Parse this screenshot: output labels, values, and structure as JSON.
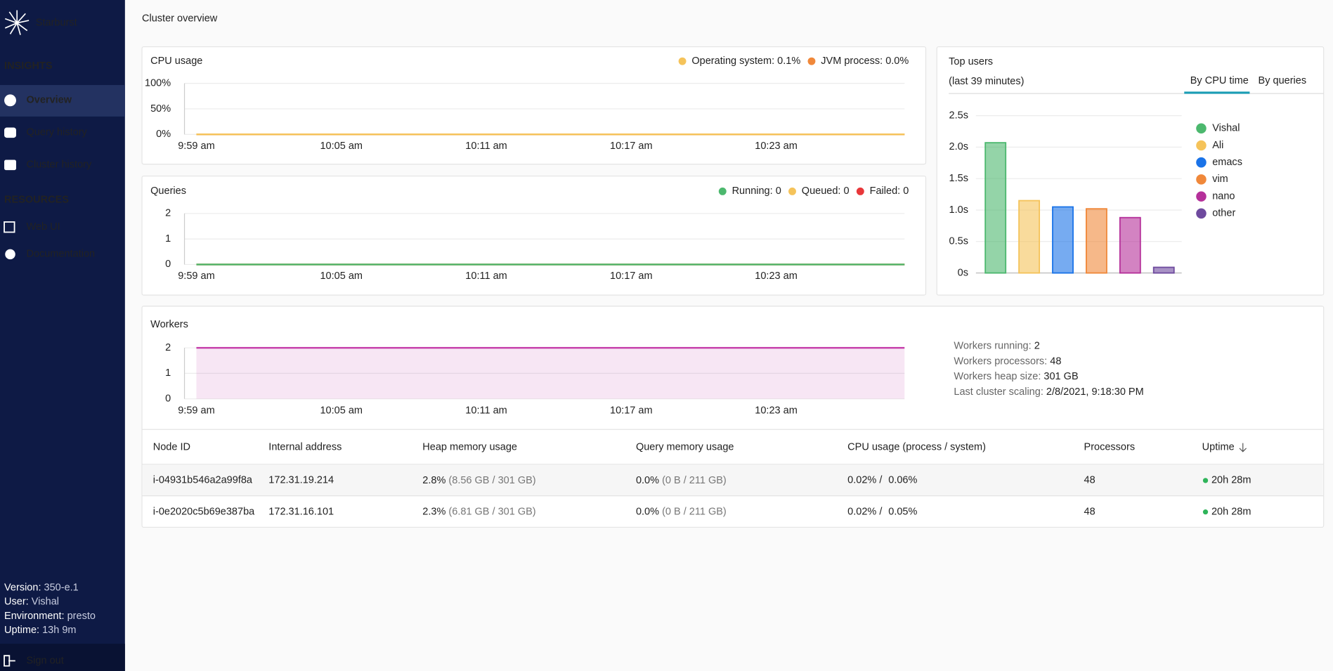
{
  "sidebar": {
    "brand": "Starburst",
    "section": "INSIGHTS",
    "nav": [
      "Overview",
      "Query history",
      "Cluster history"
    ],
    "resources_title": "RESOURCES",
    "resources": [
      "Web UI",
      "Documentation"
    ],
    "info": [
      {
        "label": "Version:",
        "value": "350-e.1"
      },
      {
        "label": "User:",
        "value": "Vishal"
      },
      {
        "label": "Environment:",
        "value": "presto"
      },
      {
        "label": "Uptime:",
        "value": "13h 9m"
      }
    ],
    "sign_out": "Sign out"
  },
  "page_title": "Cluster overview",
  "cpu_chart": {
    "type": "line",
    "title": "CPU usage",
    "x": [
      "9:59 am",
      "10:05 am",
      "10:11 am",
      "10:17 am",
      "10:23 am",
      null
    ],
    "ylim": [
      0,
      100
    ],
    "yticks": [
      {
        "value": 0,
        "label": "0%"
      },
      {
        "value": 50,
        "label": "50%"
      },
      {
        "value": 100,
        "label": "100%"
      }
    ],
    "series": [
      {
        "name": "Operating system: 0.1%",
        "color": "#f5c35a",
        "values": [
          0.1,
          0.1,
          0.1,
          0.1,
          0.1,
          0.1
        ]
      },
      {
        "name": "JVM process: 0.0%",
        "color": "#f0883a",
        "values": [
          0,
          0,
          0,
          0,
          0,
          0
        ]
      }
    ]
  },
  "queries_chart": {
    "type": "line",
    "title": "Queries",
    "x": [
      "9:59 am",
      "10:05 am",
      "10:11 am",
      "10:17 am",
      "10:23 am",
      null
    ],
    "ylim": [
      0,
      2
    ],
    "yticks": [
      0,
      1,
      2
    ],
    "series": [
      {
        "name": "Running: 0",
        "color": "#4cb86e",
        "values": [
          0,
          0,
          0,
          0,
          0,
          0
        ]
      },
      {
        "name": "Queued: 0",
        "color": "#f5c35a",
        "values": [
          0,
          0,
          0,
          0,
          0,
          0
        ]
      },
      {
        "name": "Failed: 0",
        "color": "#e8373a",
        "values": [
          0,
          0,
          0,
          0,
          0,
          0
        ]
      }
    ]
  },
  "top_users_chart": {
    "type": "bar",
    "title": "Top users",
    "subtitle": "(last 39 minutes)",
    "tabs": [
      "By CPU time",
      "By queries"
    ],
    "categories": [
      "Vishal",
      "Ali",
      "emacs",
      "vim",
      "nano",
      "other"
    ],
    "values": [
      2.07,
      1.15,
      1.05,
      1.02,
      0.88,
      0.09
    ],
    "colors": [
      "#4cb86e",
      "#f5c35a",
      "#1a73e8",
      "#f0883a",
      "#b5309a",
      "#6e4a9e"
    ],
    "ylim": [
      0,
      2.5
    ],
    "yticks": [
      {
        "value": 0,
        "label": "0s"
      },
      {
        "value": 0.5,
        "label": "0.5s"
      },
      {
        "value": 1,
        "label": "1.0s"
      },
      {
        "value": 1.5,
        "label": "1.5s"
      },
      {
        "value": 2,
        "label": "2.0s"
      },
      {
        "value": 2.5,
        "label": "2.5s"
      }
    ]
  },
  "workers_chart": {
    "type": "area",
    "title": "Workers",
    "x": [
      "9:59 am",
      "10:05 am",
      "10:11 am",
      "10:17 am",
      "10:23 am",
      null
    ],
    "ylim": [
      0,
      2
    ],
    "yticks": [
      0,
      1,
      2
    ],
    "series": [
      {
        "color": "#c43aa8",
        "values": [
          2,
          2,
          2,
          2,
          2,
          2
        ]
      }
    ]
  },
  "worker_stats": [
    {
      "label": "Workers running:",
      "value": "2"
    },
    {
      "label": "Workers processors:",
      "value": "48"
    },
    {
      "label": "Workers heap size:",
      "value": "301 GB"
    },
    {
      "label": "Last cluster scaling:",
      "value": "2/8/2021, 9:18:30 PM"
    }
  ],
  "workers_table": {
    "headers": [
      "Node ID",
      "Internal address",
      "Heap memory usage",
      "Query memory usage",
      "CPU usage (process / system)",
      "Processors",
      "Uptime"
    ],
    "cpu_separator": "/",
    "rows": [
      {
        "node_id": "i-04931b546a2a99f8a",
        "address": "172.31.19.214",
        "heap": "2.8%",
        "heap_detail": "(8.56 GB / 301 GB)",
        "query_mem": "0.0%",
        "query_mem_detail": "(0 B / 211 GB)",
        "cpu_process": "0.02%",
        "cpu_system": "0.06%",
        "processors": "48",
        "uptime": "20h 28m"
      },
      {
        "node_id": "i-0e2020c5b69e387ba",
        "address": "172.31.16.101",
        "heap": "2.3%",
        "heap_detail": "(6.81 GB / 301 GB)",
        "query_mem": "0.0%",
        "query_mem_detail": "(0 B / 211 GB)",
        "cpu_process": "0.02%",
        "cpu_system": "0.05%",
        "processors": "48",
        "uptime": "20h 28m"
      }
    ]
  }
}
